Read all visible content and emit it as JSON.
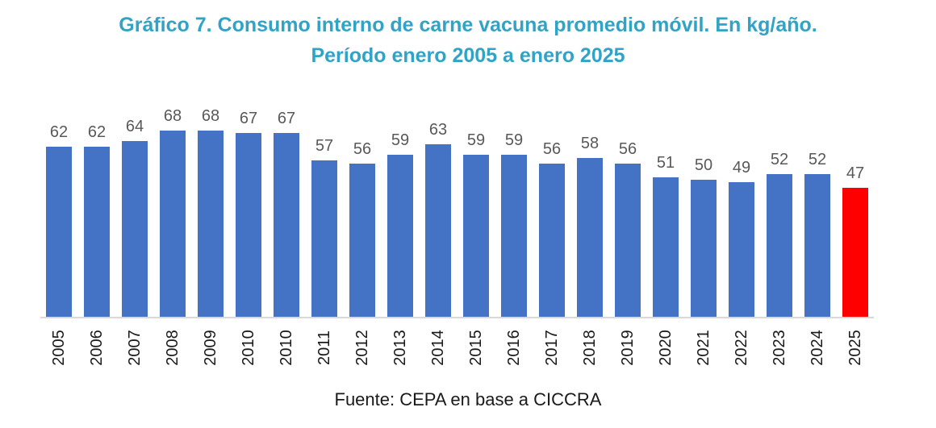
{
  "title": {
    "line1": "Gráfico 7. Consumo interno de carne vacuna promedio móvil. En kg/año.",
    "line2": "Período enero 2005 a enero 2025"
  },
  "source": "Fuente: CEPA en base a CICCRA",
  "colors": {
    "title_text": "#31A3C6",
    "bar": "#4472C4",
    "highlight_bar": "#FF0000",
    "value_label": "#595959",
    "year_label": "#1a1a1a",
    "axis_line": "#D9D9D9"
  },
  "chart_data": {
    "type": "bar",
    "title": "Gráfico 7. Consumo interno de carne vacuna promedio móvil. En kg/año. Período enero 2005 a enero 2025",
    "categories": [
      "2005",
      "2006",
      "2007",
      "2008",
      "2009",
      "2010",
      "2010",
      "2011",
      "2012",
      "2013",
      "2014",
      "2015",
      "2016",
      "2017",
      "2018",
      "2019",
      "2020",
      "2021",
      "2022",
      "2023",
      "2024",
      "2025"
    ],
    "values": [
      62,
      62,
      64,
      68,
      68,
      67,
      67,
      57,
      56,
      59,
      63,
      59,
      59,
      56,
      58,
      56,
      51,
      50,
      49,
      52,
      52,
      47
    ],
    "highlight_index": 21,
    "xlabel": "",
    "ylabel": "",
    "ylim": [
      0,
      70
    ],
    "grid": false,
    "legend_position": "none",
    "value_labels_shown": true,
    "source_note": "Fuente: CEPA en base a CICCRA"
  }
}
